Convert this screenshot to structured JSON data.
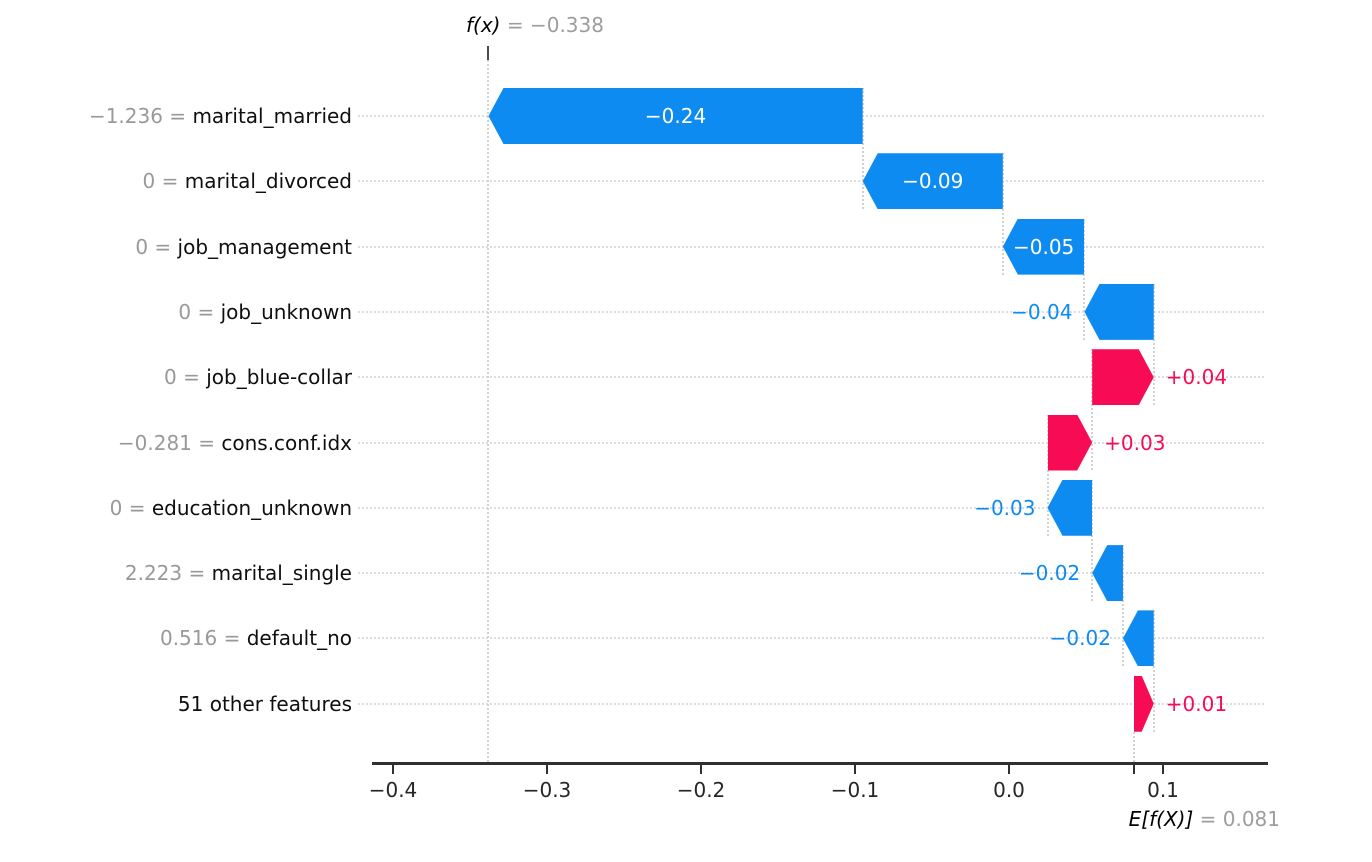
{
  "chart_data": {
    "type": "waterfall",
    "subtype": "shap-waterfall",
    "background": "#ffffff",
    "title": {
      "func": "f(x)",
      "eq": "=",
      "value": "−0.338",
      "value_num": -0.338
    },
    "baseline": {
      "func": "E[f(X)]",
      "eq": "=",
      "value": "0.081",
      "value_num": 0.081
    },
    "fx_value": -0.338,
    "expected_value": 0.081,
    "x_axis": {
      "ticks": [
        {
          "label": "−0.4",
          "v": -0.4
        },
        {
          "label": "−0.3",
          "v": -0.3
        },
        {
          "label": "−0.2",
          "v": -0.2
        },
        {
          "label": "−0.1",
          "v": -0.1
        },
        {
          "label": "0.0",
          "v": 0.0
        },
        {
          "label": "0.1",
          "v": 0.1
        }
      ],
      "extra_tick_v": 0.081,
      "range": [
        -0.415,
        0.168
      ],
      "grid": "dotted-row-lines"
    },
    "legend": "none",
    "rows": [
      {
        "prefix": "−1.236 = ",
        "feature": "marital_married",
        "feature_value": -1.236,
        "shap": "−0.24",
        "shap_num": -0.24,
        "sign": "neg",
        "lo": -0.338,
        "hi": -0.095,
        "label_placement": "inside"
      },
      {
        "prefix": "0 = ",
        "feature": "marital_divorced",
        "feature_value": 0,
        "shap": "−0.09",
        "shap_num": -0.09,
        "sign": "neg",
        "lo": -0.095,
        "hi": -0.004,
        "label_placement": "inside"
      },
      {
        "prefix": "0 = ",
        "feature": "job_management",
        "feature_value": 0,
        "shap": "−0.05",
        "shap_num": -0.05,
        "sign": "neg",
        "lo": -0.004,
        "hi": 0.049,
        "label_placement": "inside"
      },
      {
        "prefix": "0 = ",
        "feature": "job_unknown",
        "feature_value": 0,
        "shap": "−0.04",
        "shap_num": -0.04,
        "sign": "neg",
        "lo": 0.049,
        "hi": 0.094,
        "label_placement": "left"
      },
      {
        "prefix": "0 = ",
        "feature": "job_blue-collar",
        "feature_value": 0,
        "shap": "+0.04",
        "shap_num": 0.04,
        "sign": "pos",
        "lo": 0.054,
        "hi": 0.094,
        "label_placement": "right"
      },
      {
        "prefix": "−0.281 = ",
        "feature": "cons.conf.idx",
        "feature_value": -0.281,
        "shap": "+0.03",
        "shap_num": 0.03,
        "sign": "pos",
        "lo": 0.025,
        "hi": 0.054,
        "label_placement": "right"
      },
      {
        "prefix": "0 = ",
        "feature": "education_unknown",
        "feature_value": 0,
        "shap": "−0.03",
        "shap_num": -0.03,
        "sign": "neg",
        "lo": 0.025,
        "hi": 0.054,
        "label_placement": "left"
      },
      {
        "prefix": "2.223 = ",
        "feature": "marital_single",
        "feature_value": 2.223,
        "shap": "−0.02",
        "shap_num": -0.02,
        "sign": "neg",
        "lo": 0.054,
        "hi": 0.074,
        "label_placement": "left"
      },
      {
        "prefix": "0.516 = ",
        "feature": "default_no",
        "feature_value": 0.516,
        "shap": "−0.02",
        "shap_num": -0.02,
        "sign": "neg",
        "lo": 0.074,
        "hi": 0.094,
        "label_placement": "left"
      },
      {
        "prefix": "",
        "feature": "51 other features",
        "feature_value": null,
        "shap": "+0.01",
        "shap_num": 0.01,
        "sign": "pos",
        "lo": 0.081,
        "hi": 0.094,
        "label_placement": "right"
      }
    ],
    "connectors": [
      -0.095,
      -0.004,
      0.049,
      0.094,
      0.054,
      0.025,
      0.054,
      0.074,
      0.094
    ],
    "colors": {
      "positive": "#f70b55",
      "negative": "#0e8bf1",
      "muted_text": "#999999",
      "axis": "#303030",
      "grid_dots": "#dddddd",
      "dashed_lines": "#d2d2d2"
    }
  }
}
